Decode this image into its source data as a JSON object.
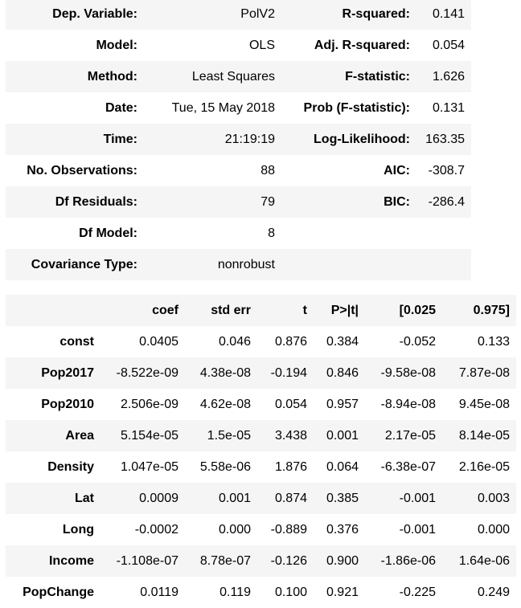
{
  "summary": {
    "rows": [
      {
        "l_label": "Dep. Variable:",
        "l_value": "PolV2",
        "r_label": "R-squared:",
        "r_value": "0.141"
      },
      {
        "l_label": "Model:",
        "l_value": "OLS",
        "r_label": "Adj. R-squared:",
        "r_value": "0.054"
      },
      {
        "l_label": "Method:",
        "l_value": "Least Squares",
        "r_label": "F-statistic:",
        "r_value": "1.626"
      },
      {
        "l_label": "Date:",
        "l_value": "Tue, 15 May 2018",
        "r_label": "Prob (F-statistic):",
        "r_value": "0.131"
      },
      {
        "l_label": "Time:",
        "l_value": "21:19:19",
        "r_label": "Log-Likelihood:",
        "r_value": "163.35"
      },
      {
        "l_label": "No. Observations:",
        "l_value": "88",
        "r_label": "AIC:",
        "r_value": "-308.7"
      },
      {
        "l_label": "Df Residuals:",
        "l_value": "79",
        "r_label": "BIC:",
        "r_value": "-286.4"
      },
      {
        "l_label": "Df Model:",
        "l_value": "8",
        "r_label": "",
        "r_value": ""
      },
      {
        "l_label": "Covariance Type:",
        "l_value": "nonrobust",
        "r_label": "",
        "r_value": ""
      }
    ]
  },
  "coefficients": {
    "headers": [
      "",
      "coef",
      "std err",
      "t",
      "P>|t|",
      "[0.025",
      "0.975]"
    ],
    "rows": [
      {
        "name": "const",
        "coef": "0.0405",
        "std_err": "0.046",
        "t": "0.876",
        "p": "0.384",
        "lo": "-0.052",
        "hi": "0.133"
      },
      {
        "name": "Pop2017",
        "coef": "-8.522e-09",
        "std_err": "4.38e-08",
        "t": "-0.194",
        "p": "0.846",
        "lo": "-9.58e-08",
        "hi": "7.87e-08"
      },
      {
        "name": "Pop2010",
        "coef": "2.506e-09",
        "std_err": "4.62e-08",
        "t": "0.054",
        "p": "0.957",
        "lo": "-8.94e-08",
        "hi": "9.45e-08"
      },
      {
        "name": "Area",
        "coef": "5.154e-05",
        "std_err": "1.5e-05",
        "t": "3.438",
        "p": "0.001",
        "lo": "2.17e-05",
        "hi": "8.14e-05"
      },
      {
        "name": "Density",
        "coef": "1.047e-05",
        "std_err": "5.58e-06",
        "t": "1.876",
        "p": "0.064",
        "lo": "-6.38e-07",
        "hi": "2.16e-05"
      },
      {
        "name": "Lat",
        "coef": "0.0009",
        "std_err": "0.001",
        "t": "0.874",
        "p": "0.385",
        "lo": "-0.001",
        "hi": "0.003"
      },
      {
        "name": "Long",
        "coef": "-0.0002",
        "std_err": "0.000",
        "t": "-0.889",
        "p": "0.376",
        "lo": "-0.001",
        "hi": "0.000"
      },
      {
        "name": "Income",
        "coef": "-1.108e-07",
        "std_err": "8.78e-07",
        "t": "-0.126",
        "p": "0.900",
        "lo": "-1.86e-06",
        "hi": "1.64e-06"
      },
      {
        "name": "PopChange",
        "coef": "0.0119",
        "std_err": "0.119",
        "t": "0.100",
        "p": "0.921",
        "lo": "-0.225",
        "hi": "0.249"
      }
    ]
  }
}
